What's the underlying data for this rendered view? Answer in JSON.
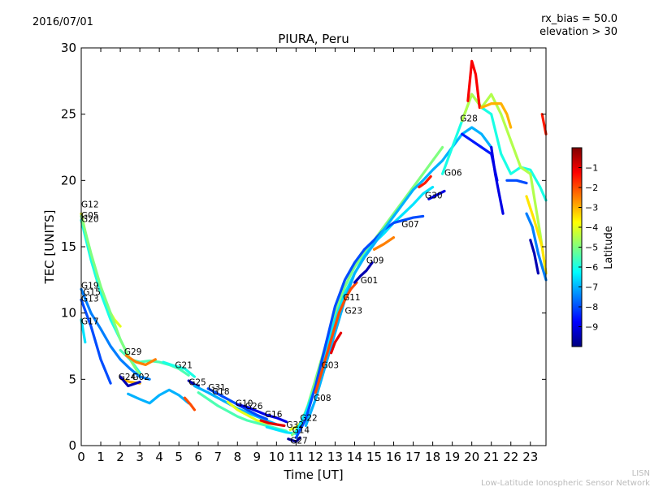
{
  "header": {
    "date": "2016/07/01",
    "rx_bias": "rx_bias = 50.0",
    "elevation": "elevation > 30"
  },
  "footer": {
    "org_short": "LISN",
    "org_long": "Low-Latitude Ionospheric Sensor Network"
  },
  "chart_data": {
    "type": "scatter",
    "title": "PIURA, Peru",
    "xlabel": "Time [UT]",
    "ylabel": "TEC [UNITS]",
    "xlim": [
      0,
      23.8
    ],
    "ylim": [
      0,
      30
    ],
    "xticks": [
      "0",
      "1",
      "2",
      "3",
      "4",
      "5",
      "6",
      "7",
      "8",
      "9",
      "10",
      "11",
      "12",
      "13",
      "14",
      "15",
      "16",
      "17",
      "18",
      "19",
      "20",
      "21",
      "22",
      "23"
    ],
    "yticks": [
      "0",
      "5",
      "10",
      "15",
      "20",
      "25",
      "30"
    ],
    "grid": false,
    "colorbar": {
      "label": "Latitude",
      "ticks": [
        "-1",
        "-2",
        "-3",
        "-4",
        "-5",
        "-6",
        "-7",
        "-8",
        "-9"
      ],
      "range": [
        -10,
        0
      ],
      "colors": [
        "#00007f",
        "#0000ff",
        "#007fff",
        "#00ffff",
        "#7fff7f",
        "#ffff00",
        "#ff7f00",
        "#ff0000",
        "#7f0000"
      ]
    },
    "satellite_labels": [
      {
        "name": "G12",
        "x": 0.0,
        "y": 18.2
      },
      {
        "name": "G05",
        "x": 0.0,
        "y": 17.4
      },
      {
        "name": "G20",
        "x": 0.0,
        "y": 17.1
      },
      {
        "name": "G19",
        "x": 0.0,
        "y": 12.1
      },
      {
        "name": "G15",
        "x": 0.1,
        "y": 11.6
      },
      {
        "name": "G13",
        "x": 0.0,
        "y": 11.1
      },
      {
        "name": "G17",
        "x": 0.0,
        "y": 9.4
      },
      {
        "name": "G29",
        "x": 2.2,
        "y": 7.1
      },
      {
        "name": "G24",
        "x": 1.9,
        "y": 5.2
      },
      {
        "name": "G02",
        "x": 2.6,
        "y": 5.2
      },
      {
        "name": "G21",
        "x": 4.8,
        "y": 6.1
      },
      {
        "name": "G25",
        "x": 5.5,
        "y": 4.8
      },
      {
        "name": "G31",
        "x": 6.5,
        "y": 4.4
      },
      {
        "name": "G18",
        "x": 6.7,
        "y": 4.1
      },
      {
        "name": "G10",
        "x": 7.9,
        "y": 3.2
      },
      {
        "name": "G26",
        "x": 8.4,
        "y": 3.0
      },
      {
        "name": "G16",
        "x": 9.4,
        "y": 2.4
      },
      {
        "name": "G32",
        "x": 10.5,
        "y": 1.6
      },
      {
        "name": "G22",
        "x": 11.2,
        "y": 2.1
      },
      {
        "name": "G14",
        "x": 10.8,
        "y": 1.2
      },
      {
        "name": "G27",
        "x": 10.7,
        "y": 0.4
      },
      {
        "name": "G08",
        "x": 11.9,
        "y": 3.6
      },
      {
        "name": "G03",
        "x": 12.3,
        "y": 6.1
      },
      {
        "name": "G11",
        "x": 13.4,
        "y": 11.2
      },
      {
        "name": "G23",
        "x": 13.5,
        "y": 10.2
      },
      {
        "name": "G01",
        "x": 14.3,
        "y": 12.5
      },
      {
        "name": "G09",
        "x": 14.6,
        "y": 14.0
      },
      {
        "name": "G07",
        "x": 16.4,
        "y": 16.7
      },
      {
        "name": "G30",
        "x": 17.6,
        "y": 18.9
      },
      {
        "name": "G06",
        "x": 18.6,
        "y": 20.6
      },
      {
        "name": "G28",
        "x": 19.4,
        "y": 24.7
      }
    ],
    "series": [
      {
        "latitude": -4.0,
        "x": [
          0.0,
          0.3,
          0.7,
          1.0,
          1.3,
          1.7,
          2.0
        ],
        "y": [
          17.5,
          15.5,
          13.0,
          11.5,
          10.5,
          9.5,
          9.0
        ]
      },
      {
        "latitude": -6.0,
        "x": [
          0.0,
          0.5,
          1.0,
          1.5,
          2.0,
          2.5,
          3.0
        ],
        "y": [
          17.0,
          14.0,
          11.5,
          9.5,
          8.0,
          6.5,
          5.5
        ]
      },
      {
        "latitude": -5.0,
        "x": [
          0.0,
          0.5,
          1.0,
          1.5,
          2.0,
          2.5,
          3.0
        ],
        "y": [
          17.3,
          14.5,
          12.0,
          10.0,
          8.0,
          6.5,
          5.3
        ]
      },
      {
        "latitude": -7.5,
        "x": [
          0.0,
          0.5,
          1.0,
          1.5,
          2.0,
          2.5,
          3.0,
          3.5
        ],
        "y": [
          11.8,
          10.0,
          8.8,
          7.5,
          6.5,
          5.8,
          5.2,
          5.0
        ]
      },
      {
        "latitude": -8.0,
        "x": [
          0.0,
          0.5,
          1.0,
          1.5
        ],
        "y": [
          11.0,
          9.0,
          6.5,
          4.7
        ]
      },
      {
        "latitude": -6.5,
        "x": [
          0.0,
          0.2
        ],
        "y": [
          9.5,
          7.8
        ]
      },
      {
        "latitude": -5.5,
        "x": [
          2.0,
          2.5,
          3.0,
          3.5,
          4.0,
          4.5,
          5.0,
          5.5
        ],
        "y": [
          7.2,
          6.5,
          6.3,
          6.4,
          6.3,
          6.1,
          5.8,
          5.3
        ]
      },
      {
        "latitude": -2.5,
        "x": [
          2.3,
          2.8,
          3.3,
          3.8
        ],
        "y": [
          6.8,
          6.3,
          6.1,
          6.5
        ]
      },
      {
        "latitude": -3.0,
        "x": [
          2.1,
          2.5,
          3.0
        ],
        "y": [
          5.0,
          4.8,
          4.7
        ]
      },
      {
        "latitude": -9.5,
        "x": [
          2.0,
          2.4,
          3.0
        ],
        "y": [
          5.2,
          4.5,
          4.8
        ]
      },
      {
        "latitude": -7.0,
        "x": [
          2.4,
          3.0,
          3.5,
          4.0,
          4.5,
          5.0,
          5.5
        ],
        "y": [
          3.9,
          3.5,
          3.2,
          3.8,
          4.2,
          3.8,
          3.2
        ]
      },
      {
        "latitude": -6.0,
        "x": [
          4.2,
          4.8,
          5.3,
          5.8
        ],
        "y": [
          6.3,
          6.0,
          5.8,
          5.2
        ]
      },
      {
        "latitude": -2.0,
        "x": [
          5.3,
          5.6,
          5.8
        ],
        "y": [
          3.6,
          3.1,
          2.7
        ]
      },
      {
        "latitude": -9.5,
        "x": [
          5.5,
          5.8,
          6.0
        ],
        "y": [
          4.9,
          4.6,
          4.5
        ]
      },
      {
        "latitude": -7.0,
        "x": [
          5.8,
          6.5,
          7.0,
          7.5,
          8.0,
          8.5,
          9.0,
          9.5,
          10.0
        ],
        "y": [
          4.5,
          4.0,
          3.6,
          3.2,
          2.8,
          2.5,
          2.2,
          1.9,
          1.6
        ]
      },
      {
        "latitude": -5.5,
        "x": [
          6.0,
          6.5,
          7.0,
          7.5,
          8.0,
          8.5,
          9.0,
          9.5,
          10.0,
          10.5
        ],
        "y": [
          4.0,
          3.5,
          3.0,
          2.6,
          2.2,
          1.9,
          1.7,
          1.5,
          1.3,
          1.1
        ]
      },
      {
        "latitude": -8.0,
        "x": [
          6.5,
          7.0,
          7.5,
          8.0,
          8.5,
          9.0,
          9.5
        ],
        "y": [
          4.3,
          3.9,
          3.5,
          3.1,
          2.7,
          2.3,
          2.0
        ]
      },
      {
        "latitude": -4.0,
        "x": [
          7.5,
          8.0,
          8.5,
          9.0,
          9.5,
          10.0
        ],
        "y": [
          3.3,
          2.7,
          2.3,
          1.9,
          1.7,
          1.6
        ]
      },
      {
        "latitude": -9.0,
        "x": [
          8.0,
          8.5,
          9.0,
          9.5,
          10.0,
          10.5
        ],
        "y": [
          3.1,
          2.9,
          2.6,
          2.3,
          2.1,
          1.8
        ]
      },
      {
        "latitude": -1.0,
        "x": [
          9.2,
          9.6,
          10.0,
          10.4
        ],
        "y": [
          1.9,
          1.7,
          1.6,
          1.5
        ]
      },
      {
        "latitude": -6.5,
        "x": [
          9.5,
          10.0,
          10.5,
          11.0
        ],
        "y": [
          1.4,
          1.2,
          1.0,
          0.9
        ]
      },
      {
        "latitude": -9.8,
        "x": [
          10.6,
          10.8,
          11.0,
          11.2
        ],
        "y": [
          0.5,
          0.4,
          0.3,
          0.6
        ]
      },
      {
        "latitude": -4.0,
        "x": [
          10.7,
          11.0,
          11.3
        ],
        "y": [
          1.2,
          1.4,
          1.8
        ]
      },
      {
        "latitude": -5.0,
        "x": [
          10.8,
          11.2,
          11.6,
          12.0,
          12.5,
          13.0,
          13.5,
          14.0,
          14.5,
          15.0,
          15.5,
          16.0,
          16.5,
          17.0,
          17.5,
          18.0,
          18.5
        ],
        "y": [
          0.8,
          1.5,
          3.0,
          5.0,
          7.5,
          10.0,
          12.0,
          13.5,
          14.5,
          15.5,
          16.5,
          17.5,
          18.5,
          19.5,
          20.5,
          21.5,
          22.5
        ]
      },
      {
        "latitude": -6.5,
        "x": [
          11.0,
          11.5,
          12.0,
          12.5,
          13.0,
          13.5,
          14.0,
          14.5,
          15.0,
          15.5,
          16.0,
          16.5,
          17.0,
          17.5,
          18.0
        ],
        "y": [
          1.0,
          2.5,
          4.5,
          7.0,
          9.5,
          11.5,
          13.0,
          14.3,
          15.3,
          16.0,
          16.8,
          17.5,
          18.2,
          19.0,
          19.5
        ]
      },
      {
        "latitude": -8.0,
        "x": [
          11.0,
          11.5,
          12.0,
          12.5,
          13.0,
          13.5,
          14.0,
          14.5,
          15.0,
          15.5,
          16.0,
          16.5,
          17.0,
          17.5
        ],
        "y": [
          0.6,
          2.0,
          4.5,
          7.5,
          10.5,
          12.5,
          13.8,
          14.8,
          15.5,
          16.3,
          16.8,
          17.0,
          17.2,
          17.3
        ]
      },
      {
        "latitude": -7.0,
        "x": [
          11.5,
          12.0,
          12.5,
          13.0,
          13.5,
          14.0,
          14.5,
          15.0,
          15.5,
          16.0,
          16.5,
          17.0,
          17.5,
          18.0,
          18.5,
          19.0,
          19.5,
          20.0,
          20.5,
          21.0
        ],
        "y": [
          1.5,
          3.5,
          6.0,
          8.5,
          11.0,
          13.0,
          14.2,
          15.2,
          16.3,
          17.3,
          18.3,
          19.3,
          20.0,
          20.8,
          21.5,
          22.5,
          23.5,
          24.0,
          23.5,
          22.5
        ]
      },
      {
        "latitude": -2.0,
        "x": [
          12.0,
          12.3,
          12.6,
          12.9,
          13.2,
          13.5,
          13.8,
          14.1
        ],
        "y": [
          4.0,
          5.5,
          7.0,
          8.5,
          10.0,
          11.0,
          11.8,
          12.3
        ]
      },
      {
        "latitude": -1.0,
        "x": [
          12.8,
          13.0,
          13.3
        ],
        "y": [
          7.0,
          7.8,
          8.5
        ]
      },
      {
        "latitude": -9.5,
        "x": [
          14.0,
          14.3,
          14.6,
          14.9
        ],
        "y": [
          12.3,
          12.8,
          13.2,
          13.8
        ]
      },
      {
        "latitude": -2.5,
        "x": [
          15.0,
          15.5,
          16.0
        ],
        "y": [
          14.8,
          15.2,
          15.7
        ]
      },
      {
        "latitude": -1.5,
        "x": [
          17.3,
          17.6,
          17.9
        ],
        "y": [
          19.5,
          19.8,
          20.3
        ]
      },
      {
        "latitude": -9.0,
        "x": [
          17.8,
          18.2,
          18.6
        ],
        "y": [
          18.6,
          18.9,
          19.2
        ]
      },
      {
        "latitude": -6.0,
        "x": [
          18.5,
          19.0,
          19.5,
          20.0,
          20.5,
          21.0,
          21.5,
          22.0,
          22.5,
          23.0,
          23.5,
          23.8
        ],
        "y": [
          20.5,
          22.5,
          24.5,
          26.5,
          25.5,
          25.0,
          22.0,
          20.5,
          21.0,
          20.8,
          19.5,
          18.5
        ]
      },
      {
        "latitude": -4.5,
        "x": [
          19.5,
          20.0,
          20.5,
          21.0,
          21.5,
          22.0,
          22.5,
          23.0,
          23.5,
          23.8
        ],
        "y": [
          24.5,
          26.5,
          25.5,
          26.5,
          25.0,
          23.0,
          21.0,
          20.5,
          16.0,
          13.0
        ]
      },
      {
        "latitude": -1.2,
        "x": [
          19.8,
          20.0,
          20.2,
          20.4
        ],
        "y": [
          26.0,
          29.0,
          28.0,
          25.5
        ]
      },
      {
        "latitude": -3.0,
        "x": [
          20.5,
          21.0,
          21.5,
          21.8,
          22.0
        ],
        "y": [
          25.5,
          25.8,
          25.8,
          25.0,
          24.0
        ]
      },
      {
        "latitude": -8.5,
        "x": [
          19.5,
          20.0,
          20.5,
          21.0,
          21.3
        ],
        "y": [
          23.5,
          23.0,
          22.5,
          22.0,
          20.0
        ]
      },
      {
        "latitude": -9.0,
        "x": [
          21.0,
          21.2,
          21.4,
          21.6
        ],
        "y": [
          22.5,
          20.5,
          19.0,
          17.5
        ]
      },
      {
        "latitude": -8.0,
        "x": [
          21.8,
          22.3,
          22.8
        ],
        "y": [
          20.0,
          20.0,
          19.8
        ]
      },
      {
        "latitude": -3.5,
        "x": [
          22.8,
          23.2,
          23.6,
          23.8
        ],
        "y": [
          18.8,
          17.0,
          15.0,
          13.0
        ]
      },
      {
        "latitude": -7.5,
        "x": [
          22.8,
          23.1,
          23.4,
          23.8
        ],
        "y": [
          17.5,
          16.5,
          14.5,
          12.5
        ]
      },
      {
        "latitude": -9.5,
        "x": [
          23.0,
          23.2,
          23.4
        ],
        "y": [
          15.5,
          14.5,
          13.0
        ]
      },
      {
        "latitude": -1.5,
        "x": [
          23.6,
          23.8
        ],
        "y": [
          25.0,
          23.5
        ]
      }
    ]
  }
}
